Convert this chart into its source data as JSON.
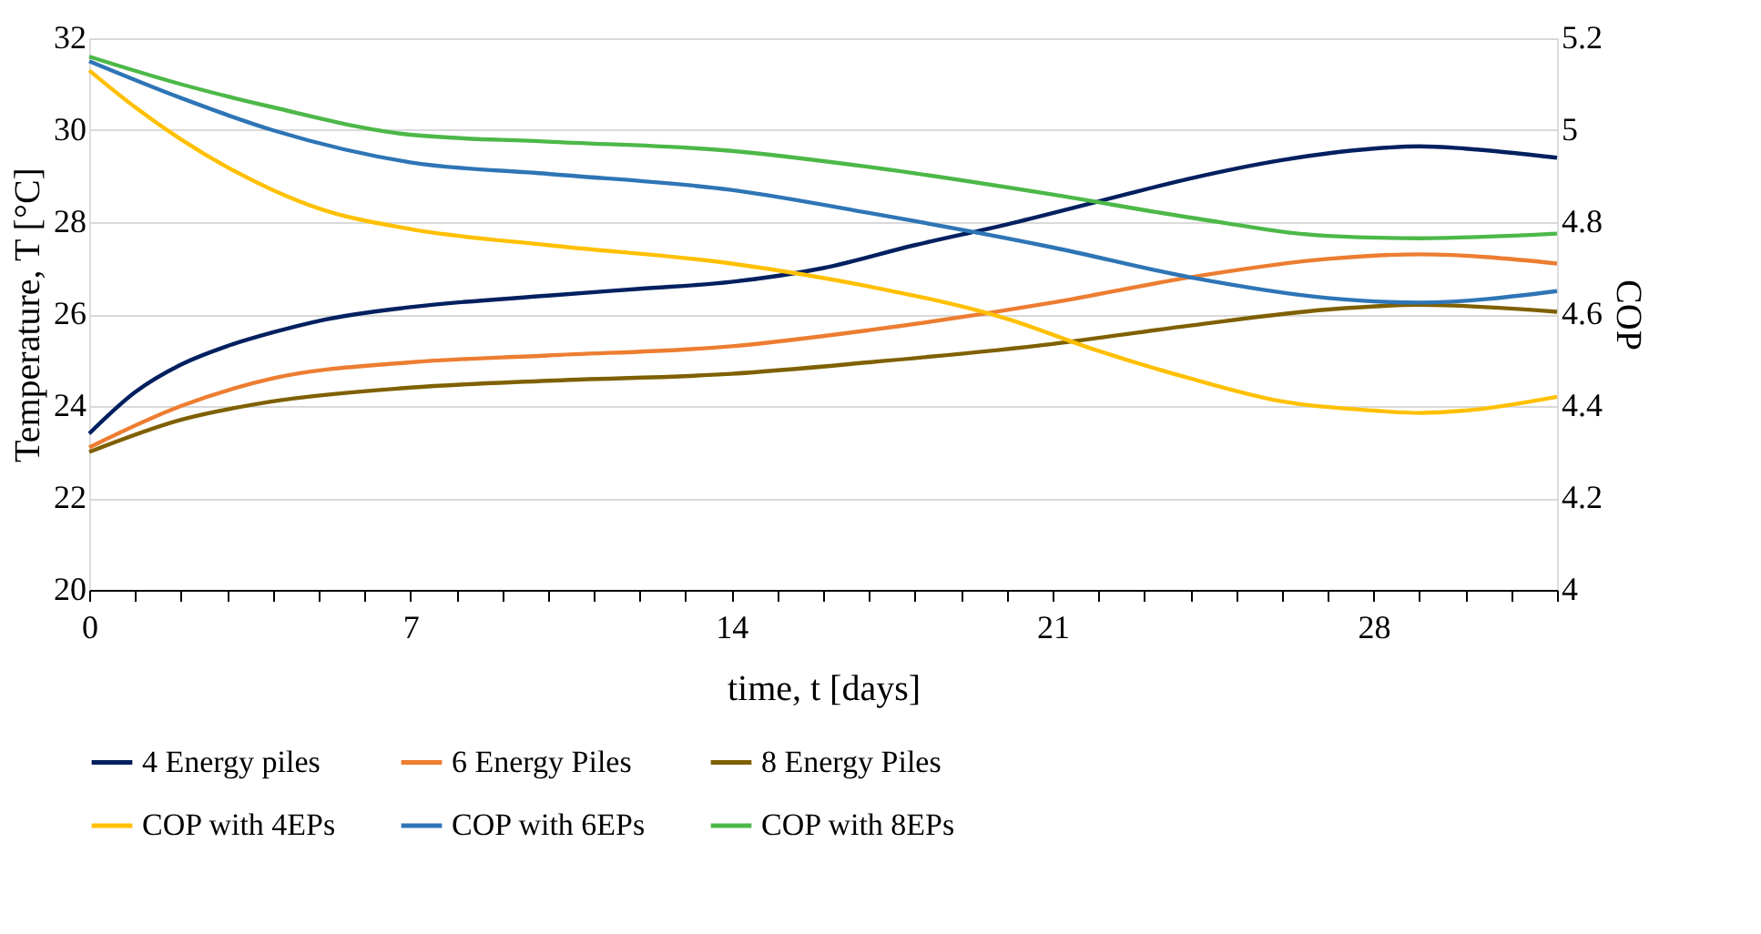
{
  "chart_data": {
    "type": "line",
    "xlabel": "time, t [days]",
    "ylabel": "Temperature, T [°C]",
    "y2label": "COP",
    "xlim": [
      0,
      32
    ],
    "xticks": [
      0,
      {
        "value": 1,
        "label": null
      },
      {
        "value": 2,
        "label": null
      },
      {
        "value": 3,
        "label": null
      },
      {
        "value": 4,
        "label": null
      },
      {
        "value": 5,
        "label": null
      },
      {
        "value": 6,
        "label": null
      },
      7,
      {
        "value": 8,
        "label": null
      },
      {
        "value": 9,
        "label": null
      },
      {
        "value": 10,
        "label": null
      },
      {
        "value": 11,
        "label": null
      },
      {
        "value": 12,
        "label": null
      },
      {
        "value": 13,
        "label": null
      },
      14,
      {
        "value": 15,
        "label": null
      },
      {
        "value": 16,
        "label": null
      },
      {
        "value": 17,
        "label": null
      },
      {
        "value": 18,
        "label": null
      },
      {
        "value": 19,
        "label": null
      },
      {
        "value": 20,
        "label": null
      },
      21,
      {
        "value": 22,
        "label": null
      },
      {
        "value": 23,
        "label": null
      },
      {
        "value": 24,
        "label": null
      },
      {
        "value": 25,
        "label": null
      },
      {
        "value": 26,
        "label": null
      },
      {
        "value": 27,
        "label": null
      },
      28,
      {
        "value": 29,
        "label": null
      },
      {
        "value": 30,
        "label": null
      },
      {
        "value": 31,
        "label": null
      },
      {
        "value": 32,
        "label": null
      }
    ],
    "ylim": [
      20,
      32
    ],
    "yticks": [
      20,
      22,
      24,
      26,
      28,
      30,
      32
    ],
    "y2lim": [
      4,
      5.2
    ],
    "y2ticks": [
      4,
      4.2,
      4.4,
      4.6,
      4.8,
      5,
      5.2
    ],
    "grid": "y",
    "legend": "bottom",
    "line_style": "solid",
    "marker": "none",
    "series": [
      {
        "name": "4 Energy piles",
        "color": "#002060",
        "x": [
          0,
          1,
          2,
          3,
          4,
          5,
          7,
          10,
          12,
          14,
          16,
          18,
          20,
          22,
          24,
          26,
          28,
          29,
          30,
          32
        ],
        "values": [
          23.4,
          24.3,
          24.9,
          25.3,
          25.6,
          25.85,
          26.15,
          26.4,
          26.55,
          26.7,
          27.0,
          27.5,
          27.95,
          28.45,
          28.95,
          29.35,
          29.6,
          29.65,
          29.6,
          29.4
        ]
      },
      {
        "name": "6 Energy Piles",
        "color": "#ed7d31",
        "x": [
          0,
          2,
          4,
          7,
          10,
          14,
          17,
          21,
          24,
          27,
          29,
          32
        ],
        "values": [
          23.1,
          24.0,
          24.6,
          24.95,
          25.1,
          25.3,
          25.65,
          26.25,
          26.8,
          27.2,
          27.3,
          27.1
        ]
      },
      {
        "name": "8 Energy Piles",
        "color": "#7f6000",
        "x": [
          0,
          2,
          4,
          7,
          10,
          14,
          17,
          21,
          24,
          27,
          29,
          32
        ],
        "values": [
          23.0,
          23.7,
          24.1,
          24.4,
          24.55,
          24.7,
          24.95,
          25.35,
          25.75,
          26.1,
          26.2,
          26.05
        ]
      },
      {
        "name": "COP with 4EPs",
        "color": "#ffc000",
        "axis": "y2",
        "x": [
          0,
          1,
          2,
          3,
          4,
          5,
          7,
          10,
          14,
          17,
          20,
          22,
          24,
          26,
          28,
          29,
          30,
          32
        ],
        "values": [
          5.13,
          5.05,
          4.98,
          4.92,
          4.87,
          4.83,
          4.785,
          4.75,
          4.71,
          4.66,
          4.59,
          4.52,
          4.46,
          4.41,
          4.39,
          4.385,
          4.39,
          4.42
        ]
      },
      {
        "name": "COP with 6EPs",
        "color": "#2e75b6",
        "axis": "y2",
        "x": [
          0,
          2,
          4,
          7,
          10,
          14,
          17,
          21,
          24,
          27,
          29,
          32
        ],
        "values": [
          5.15,
          5.07,
          5.0,
          4.93,
          4.905,
          4.87,
          4.82,
          4.745,
          4.68,
          4.635,
          4.625,
          4.65
        ]
      },
      {
        "name": "COP with 8EPs",
        "color": "#4cb848",
        "axis": "y2",
        "x": [
          0,
          2,
          4,
          7,
          10,
          14,
          17,
          21,
          24,
          27,
          29,
          32
        ],
        "values": [
          5.16,
          5.1,
          5.05,
          4.99,
          4.975,
          4.955,
          4.92,
          4.86,
          4.81,
          4.77,
          4.765,
          4.775
        ]
      }
    ]
  }
}
